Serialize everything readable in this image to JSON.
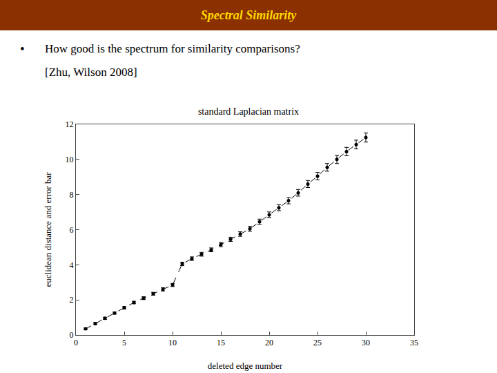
{
  "chart_data": {
    "type": "line",
    "title": "Spectral Similarity",
    "subtitle": "standard Laplacian matrix",
    "annotations": [
      "•",
      "How good is the spectrum for similarity comparisons?",
      "[Zhu, Wilson 2008]"
    ],
    "x_label": "deleted edge number",
    "y_label": "euclidean distance and error bar",
    "x": [
      1,
      2,
      3,
      4,
      5,
      6,
      7,
      8,
      9,
      10,
      11,
      12,
      13,
      14,
      15,
      16,
      17,
      18,
      19,
      20,
      21,
      22,
      23,
      24,
      25,
      26,
      27,
      28,
      29,
      30
    ],
    "values": [
      0.35,
      0.65,
      0.95,
      1.25,
      1.55,
      1.85,
      2.1,
      2.35,
      2.6,
      2.85,
      4.05,
      4.35,
      4.6,
      4.85,
      5.15,
      5.45,
      5.75,
      6.05,
      6.45,
      6.85,
      7.25,
      7.65,
      8.1,
      8.6,
      9.05,
      9.55,
      10.0,
      10.45,
      10.85,
      11.25
    ],
    "errors": [
      0.05,
      0.06,
      0.06,
      0.06,
      0.07,
      0.07,
      0.08,
      0.08,
      0.09,
      0.09,
      0.1,
      0.1,
      0.11,
      0.11,
      0.12,
      0.12,
      0.13,
      0.14,
      0.15,
      0.16,
      0.17,
      0.18,
      0.19,
      0.2,
      0.21,
      0.22,
      0.23,
      0.24,
      0.25,
      0.26
    ],
    "color": "#000000",
    "line_style": "dashed",
    "marker": "dot",
    "xlim": [
      0,
      35
    ],
    "ylim": [
      0,
      12
    ],
    "xticks": [
      0,
      5,
      10,
      15,
      20,
      25,
      30,
      35
    ],
    "yticks": [
      0,
      2,
      4,
      6,
      8,
      10,
      12
    ],
    "grid": false
  }
}
